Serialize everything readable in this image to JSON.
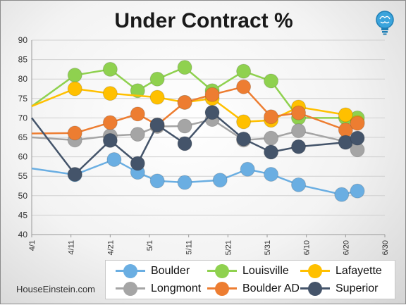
{
  "header": {
    "title": "Under Contract %",
    "credit": "HouseEinstein.com",
    "logo_icon": "lightbulb-brain-icon"
  },
  "chart_data": {
    "type": "line",
    "title": "Under Contract %",
    "xlabel": "",
    "ylabel": "",
    "ylim": [
      40,
      90
    ],
    "yticks": [
      40,
      45,
      50,
      55,
      60,
      65,
      70,
      75,
      80,
      85,
      90
    ],
    "xlim": [
      "4/1",
      "6/30"
    ],
    "xtick_labels": [
      "4/1",
      "4/11",
      "4/21",
      "5/1",
      "5/11",
      "5/21",
      "5/31",
      "6/10",
      "6/20",
      "6/30"
    ],
    "grid": true,
    "legend": "bottom",
    "series": [
      {
        "name": "Boulder",
        "color": "#6aaee2",
        "x": [
          "2014-04-01",
          "2014-04-12",
          "2014-04-22",
          "2014-04-28",
          "2014-05-03",
          "2014-05-10",
          "2014-05-19",
          "2014-05-26",
          "2014-06-01",
          "2014-06-08",
          "2014-06-19",
          "2014-06-23"
        ],
        "y": [
          57,
          55.4,
          59.3,
          56.0,
          53.8,
          53.4,
          54.0,
          56.8,
          55.5,
          52.8,
          50.3,
          51.2
        ]
      },
      {
        "name": "Louisville",
        "color": "#8fd14f",
        "x": [
          "2014-04-01",
          "2014-04-12",
          "2014-04-21",
          "2014-04-28",
          "2014-05-03",
          "2014-05-10",
          "2014-05-17",
          "2014-05-25",
          "2014-06-01",
          "2014-06-08",
          "2014-06-20",
          "2014-06-23"
        ],
        "y": [
          73,
          81,
          82.5,
          77,
          80,
          83,
          77,
          82,
          79.5,
          70,
          70,
          70
        ]
      },
      {
        "name": "Lafayette",
        "color": "#ffc000",
        "x": [
          "2014-04-01",
          "2014-04-12",
          "2014-04-21",
          "2014-05-03",
          "2014-05-10",
          "2014-05-17",
          "2014-05-25",
          "2014-06-01",
          "2014-06-08",
          "2014-06-20",
          "2014-06-23"
        ],
        "y": [
          73,
          77.5,
          76.3,
          75.3,
          74.0,
          75.0,
          69.0,
          69.4,
          72.8,
          70.8,
          68.8
        ]
      },
      {
        "name": "Longmont",
        "color": "#a5a5a5",
        "x": [
          "2014-04-01",
          "2014-04-12",
          "2014-04-21",
          "2014-04-28",
          "2014-05-03",
          "2014-05-10",
          "2014-05-17",
          "2014-05-25",
          "2014-06-01",
          "2014-06-08",
          "2014-06-20",
          "2014-06-23"
        ],
        "y": [
          65,
          64.3,
          65.4,
          65.8,
          67.8,
          67.9,
          69.6,
          64.3,
          64.8,
          66.7,
          63.9,
          61.8
        ]
      },
      {
        "name": "Boulder AD",
        "color": "#ed7d31",
        "x": [
          "2014-04-01",
          "2014-04-12",
          "2014-04-21",
          "2014-04-28",
          "2014-05-03",
          "2014-05-10",
          "2014-05-17",
          "2014-05-25",
          "2014-06-01",
          "2014-06-08",
          "2014-06-20",
          "2014-06-23"
        ],
        "y": [
          66,
          66.1,
          68.8,
          71.0,
          68.2,
          74.0,
          76.0,
          78.0,
          70.3,
          71.3,
          66.9,
          68.6
        ]
      },
      {
        "name": "Superior",
        "color": "#44546a",
        "x": [
          "2014-04-01",
          "2014-04-12",
          "2014-04-21",
          "2014-04-28",
          "2014-05-03",
          "2014-05-10",
          "2014-05-17",
          "2014-05-25",
          "2014-06-01",
          "2014-06-08",
          "2014-06-20",
          "2014-06-23"
        ],
        "y": [
          70,
          55.5,
          64.2,
          58.3,
          68.2,
          63.4,
          71.4,
          64.6,
          61.2,
          62.6,
          63.7,
          64.8
        ]
      }
    ]
  }
}
